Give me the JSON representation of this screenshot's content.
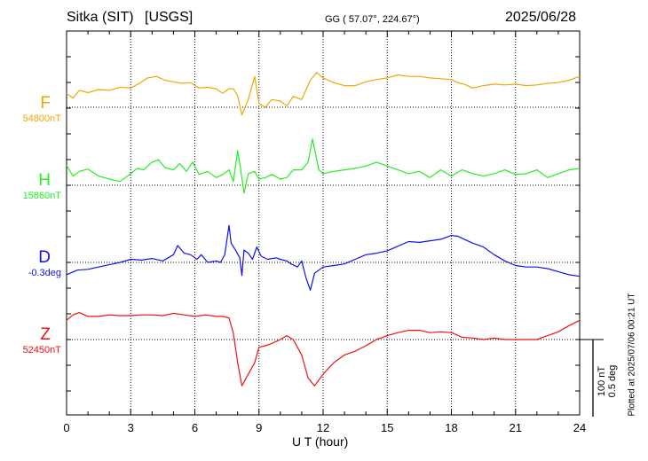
{
  "header": {
    "station": "Sitka (SIT)",
    "source": "[USGS]",
    "coords": "GG ( 57.07°, 224.67°)",
    "date": "2025/06/28"
  },
  "plotted_note": "Plotted at 2025/07/06 00:21 UT",
  "scale_bar": {
    "line1": "100 nT",
    "line2": "0.5 deg"
  },
  "chart_data": {
    "type": "line",
    "xlabel": "U T (hour)",
    "xlim": [
      0,
      24
    ],
    "xticks": [
      0,
      3,
      6,
      9,
      12,
      15,
      18,
      21,
      24
    ],
    "grid": true,
    "series": [
      {
        "name": "F",
        "baseline_label": "54800nT",
        "color": "#f0a800",
        "points": [
          [
            0,
            -18
          ],
          [
            0.3,
            -12
          ],
          [
            0.6,
            -22
          ],
          [
            1,
            -19
          ],
          [
            1.5,
            -23
          ],
          [
            2,
            -22
          ],
          [
            2.5,
            -26
          ],
          [
            3,
            -25
          ],
          [
            3.4,
            -31
          ],
          [
            3.8,
            -38
          ],
          [
            4.2,
            -40
          ],
          [
            4.6,
            -35
          ],
          [
            5,
            -33
          ],
          [
            5.4,
            -31
          ],
          [
            5.8,
            -32
          ],
          [
            6.2,
            -25
          ],
          [
            6.6,
            -26
          ],
          [
            7,
            -24
          ],
          [
            7.3,
            -18
          ],
          [
            7.6,
            -24
          ],
          [
            7.8,
            -24
          ],
          [
            8,
            -15
          ],
          [
            8.2,
            10
          ],
          [
            8.5,
            -10
          ],
          [
            8.8,
            -40
          ],
          [
            9,
            -5
          ],
          [
            9.3,
            0
          ],
          [
            9.6,
            -10
          ],
          [
            10,
            -8
          ],
          [
            10.3,
            -2
          ],
          [
            10.6,
            -14
          ],
          [
            11,
            -10
          ],
          [
            11.4,
            -35
          ],
          [
            11.7,
            -45
          ],
          [
            12,
            -38
          ],
          [
            12.5,
            -32
          ],
          [
            13,
            -28
          ],
          [
            13.5,
            -28
          ],
          [
            14,
            -33
          ],
          [
            14.5,
            -36
          ],
          [
            15,
            -38
          ],
          [
            15.5,
            -42
          ],
          [
            16,
            -40
          ],
          [
            16.5,
            -40
          ],
          [
            17,
            -38
          ],
          [
            17.5,
            -37
          ],
          [
            18,
            -36
          ],
          [
            18.3,
            -32
          ],
          [
            18.6,
            -30
          ],
          [
            19,
            -25
          ],
          [
            19.5,
            -28
          ],
          [
            20,
            -30
          ],
          [
            20.5,
            -29
          ],
          [
            21,
            -30
          ],
          [
            21.5,
            -28
          ],
          [
            22,
            -29
          ],
          [
            22.5,
            -31
          ],
          [
            23,
            -32
          ],
          [
            23.5,
            -35
          ],
          [
            24,
            -40
          ]
        ]
      },
      {
        "name": "H",
        "baseline_label": "15860nT",
        "color": "#22ee22",
        "points": [
          [
            0,
            -26
          ],
          [
            0.3,
            -12
          ],
          [
            0.6,
            -18
          ],
          [
            1,
            -21
          ],
          [
            1.5,
            -12
          ],
          [
            2,
            -8
          ],
          [
            2.5,
            -5
          ],
          [
            3,
            -15
          ],
          [
            3.3,
            -22
          ],
          [
            3.6,
            -20
          ],
          [
            4,
            -30
          ],
          [
            4.3,
            -33
          ],
          [
            4.6,
            -23
          ],
          [
            5,
            -20
          ],
          [
            5.3,
            -28
          ],
          [
            5.6,
            -18
          ],
          [
            5.9,
            -30
          ],
          [
            6.2,
            -14
          ],
          [
            6.6,
            -18
          ],
          [
            7,
            -10
          ],
          [
            7.3,
            -14
          ],
          [
            7.6,
            -20
          ],
          [
            7.8,
            -5
          ],
          [
            8,
            -45
          ],
          [
            8.1,
            -28
          ],
          [
            8.3,
            10
          ],
          [
            8.5,
            -15
          ],
          [
            8.8,
            -18
          ],
          [
            9,
            -8
          ],
          [
            9.3,
            -10
          ],
          [
            9.6,
            -14
          ],
          [
            10,
            -8
          ],
          [
            10.3,
            -10
          ],
          [
            10.6,
            -20
          ],
          [
            11,
            -20
          ],
          [
            11.3,
            -30
          ],
          [
            11.5,
            -60
          ],
          [
            11.8,
            -20
          ],
          [
            12,
            -15
          ],
          [
            12.5,
            -18
          ],
          [
            13,
            -20
          ],
          [
            13.5,
            -22
          ],
          [
            14,
            -25
          ],
          [
            14.5,
            -30
          ],
          [
            15,
            -25
          ],
          [
            15.5,
            -20
          ],
          [
            16,
            -15
          ],
          [
            16.5,
            -18
          ],
          [
            17,
            -10
          ],
          [
            17.5,
            -20
          ],
          [
            18,
            -12
          ],
          [
            18.5,
            -20
          ],
          [
            19,
            -15
          ],
          [
            19.5,
            -12
          ],
          [
            20,
            -15
          ],
          [
            20.5,
            -20
          ],
          [
            21,
            -14
          ],
          [
            21.5,
            -15
          ],
          [
            22,
            -20
          ],
          [
            22.5,
            -10
          ],
          [
            23,
            -15
          ],
          [
            23.5,
            -20
          ],
          [
            24,
            -22
          ]
        ]
      },
      {
        "name": "D",
        "baseline_label": "-0.3deg",
        "color": "#1010ee",
        "points": [
          [
            0,
            16
          ],
          [
            0.5,
            10
          ],
          [
            1,
            9
          ],
          [
            1.5,
            6
          ],
          [
            2,
            3
          ],
          [
            2.5,
            0
          ],
          [
            3,
            -4
          ],
          [
            3.5,
            -3
          ],
          [
            4,
            -5
          ],
          [
            4.5,
            -2
          ],
          [
            5,
            -10
          ],
          [
            5.2,
            -22
          ],
          [
            5.5,
            -12
          ],
          [
            5.8,
            -10
          ],
          [
            6.1,
            -4
          ],
          [
            6.3,
            -10
          ],
          [
            6.6,
            0
          ],
          [
            7,
            -2
          ],
          [
            7.2,
            0
          ],
          [
            7.4,
            -10
          ],
          [
            7.6,
            -48
          ],
          [
            7.7,
            -25
          ],
          [
            7.9,
            -16
          ],
          [
            8.1,
            -6
          ],
          [
            8.2,
            17
          ],
          [
            8.3,
            -16
          ],
          [
            8.5,
            -12
          ],
          [
            8.7,
            -4
          ],
          [
            8.9,
            -20
          ],
          [
            9.1,
            -8
          ],
          [
            9.4,
            -4
          ],
          [
            9.8,
            -6
          ],
          [
            10,
            -4
          ],
          [
            10.3,
            -2
          ],
          [
            10.5,
            2
          ],
          [
            10.8,
            6
          ],
          [
            11,
            -2
          ],
          [
            11.2,
            20
          ],
          [
            11.4,
            36
          ],
          [
            11.6,
            14
          ],
          [
            11.8,
            10
          ],
          [
            12,
            6
          ],
          [
            12.5,
            4
          ],
          [
            13,
            2
          ],
          [
            13.5,
            -4
          ],
          [
            14,
            -10
          ],
          [
            14.5,
            -12
          ],
          [
            15,
            -15
          ],
          [
            15.5,
            -21
          ],
          [
            16,
            -27
          ],
          [
            16.5,
            -26
          ],
          [
            17,
            -28
          ],
          [
            17.5,
            -30
          ],
          [
            18,
            -35
          ],
          [
            18.3,
            -34
          ],
          [
            18.6,
            -30
          ],
          [
            19,
            -25
          ],
          [
            19.5,
            -20
          ],
          [
            20,
            -10
          ],
          [
            20.5,
            -2
          ],
          [
            21,
            4
          ],
          [
            21.5,
            6
          ],
          [
            22,
            6
          ],
          [
            22.5,
            8
          ],
          [
            23,
            12
          ],
          [
            23.5,
            16
          ],
          [
            24,
            18
          ]
        ]
      },
      {
        "name": "Z",
        "baseline_label": "52450nT",
        "color": "#ee1111",
        "points": [
          [
            0,
            -25
          ],
          [
            0.3,
            -32
          ],
          [
            0.6,
            -35
          ],
          [
            1,
            -30
          ],
          [
            1.5,
            -30
          ],
          [
            2,
            -32
          ],
          [
            2.5,
            -31
          ],
          [
            3,
            -31
          ],
          [
            3.5,
            -32
          ],
          [
            4,
            -32
          ],
          [
            4.5,
            -31
          ],
          [
            5,
            -34
          ],
          [
            5.5,
            -32
          ],
          [
            6,
            -30
          ],
          [
            6.5,
            -32
          ],
          [
            7,
            -30
          ],
          [
            7.3,
            -30
          ],
          [
            7.6,
            -28
          ],
          [
            7.8,
            -8
          ],
          [
            8,
            30
          ],
          [
            8.2,
            60
          ],
          [
            8.5,
            45
          ],
          [
            8.8,
            30
          ],
          [
            9,
            10
          ],
          [
            9.3,
            8
          ],
          [
            9.6,
            5
          ],
          [
            10,
            0
          ],
          [
            10.3,
            -5
          ],
          [
            10.6,
            0
          ],
          [
            11,
            20
          ],
          [
            11.3,
            50
          ],
          [
            11.6,
            60
          ],
          [
            12,
            45
          ],
          [
            12.5,
            30
          ],
          [
            13,
            20
          ],
          [
            13.5,
            15
          ],
          [
            14,
            8
          ],
          [
            14.5,
            0
          ],
          [
            15,
            -5
          ],
          [
            15.5,
            -9
          ],
          [
            16,
            -12
          ],
          [
            16.5,
            -12
          ],
          [
            17,
            -9
          ],
          [
            17.5,
            -10
          ],
          [
            18,
            -9
          ],
          [
            18.5,
            -3
          ],
          [
            19,
            -2
          ],
          [
            19.5,
            0
          ],
          [
            20,
            -2
          ],
          [
            20.5,
            0
          ],
          [
            21,
            0
          ],
          [
            21.5,
            0
          ],
          [
            22,
            0
          ],
          [
            22.5,
            -5
          ],
          [
            23,
            -10
          ],
          [
            23.5,
            -18
          ],
          [
            24,
            -25
          ]
        ]
      }
    ]
  }
}
